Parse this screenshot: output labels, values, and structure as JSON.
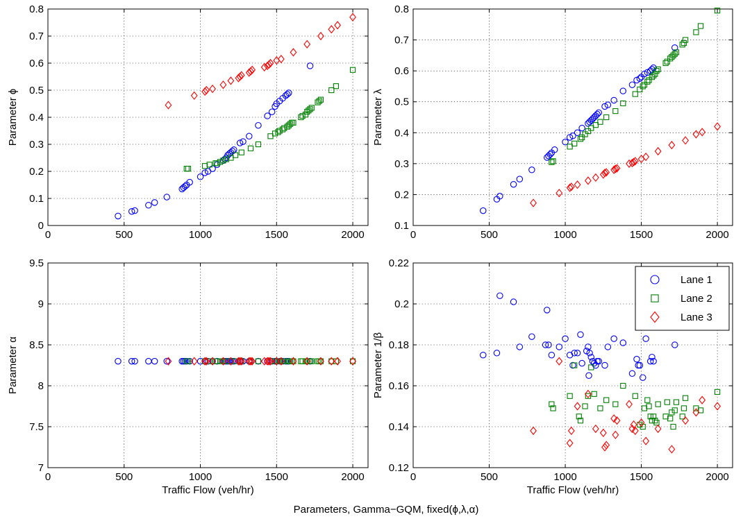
{
  "figure": {
    "caption": "Parameters, Gamma−GQM, fixed(ϕ,λ,α)",
    "colors": {
      "lane1": "#0000ff",
      "lane2": "#008000",
      "lane3": "#ff0000"
    },
    "markers": {
      "lane1": "circle",
      "lane2": "square",
      "lane3": "diamond"
    }
  },
  "chart_data": [
    {
      "type": "scatter",
      "panel": "top-left",
      "xlabel": "",
      "ylabel": "Parameter ϕ",
      "xlim": [
        0,
        2100
      ],
      "ylim": [
        0,
        0.8
      ],
      "xticks": [
        0,
        500,
        1000,
        1500,
        2000
      ],
      "yticks": [
        0,
        0.1,
        0.2,
        0.3,
        0.4,
        0.5,
        0.6,
        0.7,
        0.8
      ],
      "ytick_labels": [
        "0",
        "0.1",
        "0.2",
        "0.3",
        "0.4",
        "0.5",
        "0.6",
        "0.7",
        "0.8"
      ],
      "grid": true,
      "series": [
        {
          "name": "Lane 1",
          "color": "#0000ff",
          "marker": "circle",
          "x": [
            460,
            550,
            570,
            660,
            700,
            780,
            880,
            890,
            900,
            910,
            930,
            1000,
            1030,
            1050,
            1080,
            1110,
            1150,
            1160,
            1170,
            1180,
            1190,
            1200,
            1210,
            1220,
            1260,
            1280,
            1320,
            1380,
            1440,
            1470,
            1490,
            1500,
            1520,
            1540,
            1560,
            1570,
            1580,
            1720
          ],
          "y": [
            0.035,
            0.052,
            0.055,
            0.075,
            0.085,
            0.105,
            0.135,
            0.14,
            0.145,
            0.15,
            0.16,
            0.18,
            0.195,
            0.2,
            0.21,
            0.225,
            0.24,
            0.245,
            0.25,
            0.26,
            0.265,
            0.27,
            0.275,
            0.28,
            0.305,
            0.31,
            0.33,
            0.37,
            0.405,
            0.42,
            0.44,
            0.45,
            0.46,
            0.47,
            0.48,
            0.485,
            0.49,
            0.59
          ]
        },
        {
          "name": "Lane 2",
          "color": "#008000",
          "marker": "square",
          "x": [
            910,
            920,
            1030,
            1060,
            1100,
            1110,
            1130,
            1150,
            1170,
            1200,
            1230,
            1270,
            1330,
            1380,
            1460,
            1490,
            1510,
            1520,
            1540,
            1550,
            1570,
            1580,
            1590,
            1600,
            1610,
            1660,
            1670,
            1690,
            1700,
            1710,
            1720,
            1730,
            1770,
            1780,
            1790,
            1860,
            1890,
            2000
          ],
          "y": [
            0.21,
            0.21,
            0.22,
            0.225,
            0.23,
            0.23,
            0.235,
            0.24,
            0.245,
            0.25,
            0.26,
            0.27,
            0.285,
            0.3,
            0.33,
            0.34,
            0.345,
            0.35,
            0.355,
            0.36,
            0.365,
            0.37,
            0.375,
            0.38,
            0.38,
            0.4,
            0.405,
            0.41,
            0.42,
            0.425,
            0.43,
            0.435,
            0.455,
            0.46,
            0.465,
            0.5,
            0.515,
            0.575
          ]
        },
        {
          "name": "Lane 3",
          "color": "#ff0000",
          "marker": "diamond",
          "x": [
            790,
            960,
            1030,
            1040,
            1080,
            1150,
            1200,
            1250,
            1260,
            1270,
            1320,
            1330,
            1340,
            1420,
            1440,
            1450,
            1460,
            1500,
            1530,
            1610,
            1700,
            1790,
            1860,
            1900,
            2000
          ],
          "y": [
            0.445,
            0.48,
            0.495,
            0.5,
            0.505,
            0.52,
            0.535,
            0.545,
            0.55,
            0.555,
            0.565,
            0.57,
            0.575,
            0.585,
            0.59,
            0.595,
            0.6,
            0.61,
            0.615,
            0.64,
            0.67,
            0.7,
            0.725,
            0.74,
            0.77
          ]
        }
      ]
    },
    {
      "type": "scatter",
      "panel": "top-right",
      "xlabel": "",
      "ylabel": "Parameter λ",
      "xlim": [
        0,
        2100
      ],
      "ylim": [
        0.1,
        0.8
      ],
      "xticks": [
        0,
        500,
        1000,
        1500,
        2000
      ],
      "yticks": [
        0.1,
        0.2,
        0.3,
        0.4,
        0.5,
        0.6,
        0.7,
        0.8
      ],
      "ytick_labels": [
        "0.1",
        "0.2",
        "0.3",
        "0.4",
        "0.5",
        "0.6",
        "0.7",
        "0.8"
      ],
      "grid": true,
      "series": [
        {
          "name": "Lane 1",
          "color": "#0000ff",
          "marker": "circle",
          "x": [
            460,
            550,
            570,
            660,
            700,
            780,
            880,
            890,
            900,
            910,
            930,
            1000,
            1030,
            1050,
            1080,
            1110,
            1150,
            1160,
            1170,
            1180,
            1190,
            1200,
            1210,
            1220,
            1260,
            1280,
            1320,
            1380,
            1440,
            1470,
            1490,
            1500,
            1520,
            1540,
            1560,
            1570,
            1580,
            1720
          ],
          "y": [
            0.148,
            0.185,
            0.195,
            0.233,
            0.25,
            0.28,
            0.32,
            0.325,
            0.33,
            0.335,
            0.345,
            0.37,
            0.385,
            0.39,
            0.4,
            0.415,
            0.43,
            0.435,
            0.44,
            0.445,
            0.45,
            0.455,
            0.46,
            0.465,
            0.485,
            0.49,
            0.505,
            0.535,
            0.555,
            0.57,
            0.575,
            0.58,
            0.59,
            0.595,
            0.6,
            0.605,
            0.61,
            0.675
          ]
        },
        {
          "name": "Lane 2",
          "color": "#008000",
          "marker": "square",
          "x": [
            910,
            920,
            1030,
            1060,
            1100,
            1110,
            1130,
            1150,
            1170,
            1200,
            1230,
            1270,
            1330,
            1380,
            1460,
            1490,
            1510,
            1520,
            1540,
            1550,
            1570,
            1580,
            1590,
            1600,
            1610,
            1660,
            1670,
            1690,
            1700,
            1710,
            1720,
            1730,
            1770,
            1780,
            1790,
            1860,
            1890,
            2000
          ],
          "y": [
            0.305,
            0.308,
            0.355,
            0.365,
            0.38,
            0.385,
            0.395,
            0.405,
            0.415,
            0.425,
            0.435,
            0.45,
            0.47,
            0.495,
            0.525,
            0.54,
            0.55,
            0.555,
            0.565,
            0.57,
            0.58,
            0.585,
            0.59,
            0.6,
            0.605,
            0.625,
            0.63,
            0.64,
            0.645,
            0.65,
            0.655,
            0.66,
            0.685,
            0.69,
            0.7,
            0.725,
            0.745,
            0.795
          ]
        },
        {
          "name": "Lane 3",
          "color": "#ff0000",
          "marker": "diamond",
          "x": [
            790,
            960,
            1030,
            1040,
            1080,
            1150,
            1200,
            1250,
            1260,
            1270,
            1320,
            1330,
            1340,
            1420,
            1440,
            1450,
            1460,
            1500,
            1530,
            1610,
            1700,
            1790,
            1860,
            1900,
            2000
          ],
          "y": [
            0.173,
            0.205,
            0.222,
            0.225,
            0.232,
            0.245,
            0.255,
            0.265,
            0.27,
            0.272,
            0.28,
            0.283,
            0.285,
            0.3,
            0.302,
            0.305,
            0.308,
            0.315,
            0.322,
            0.34,
            0.36,
            0.375,
            0.395,
            0.402,
            0.42
          ]
        }
      ]
    },
    {
      "type": "scatter",
      "panel": "bottom-left",
      "xlabel": "Traffic Flow (veh/hr)",
      "ylabel": "Parameter α",
      "xlim": [
        0,
        2100
      ],
      "ylim": [
        7,
        9.5
      ],
      "xticks": [
        0,
        500,
        1000,
        1500,
        2000
      ],
      "yticks": [
        7,
        7.5,
        8,
        8.5,
        9,
        9.5
      ],
      "ytick_labels": [
        "7",
        "7.5",
        "8",
        "8.5",
        "9",
        "9.5"
      ],
      "grid": true,
      "series": [
        {
          "name": "Lane 1",
          "color": "#0000ff",
          "marker": "circle",
          "x": [
            460,
            550,
            570,
            660,
            700,
            780,
            880,
            890,
            900,
            910,
            930,
            1000,
            1030,
            1050,
            1080,
            1110,
            1150,
            1160,
            1170,
            1180,
            1190,
            1200,
            1210,
            1220,
            1260,
            1280,
            1320,
            1380,
            1440,
            1470,
            1490,
            1500,
            1520,
            1540,
            1560,
            1570,
            1580,
            1720
          ],
          "y": [
            8.3,
            8.3,
            8.3,
            8.3,
            8.3,
            8.3,
            8.3,
            8.3,
            8.3,
            8.3,
            8.3,
            8.3,
            8.3,
            8.3,
            8.3,
            8.3,
            8.3,
            8.3,
            8.3,
            8.3,
            8.3,
            8.3,
            8.3,
            8.3,
            8.3,
            8.3,
            8.3,
            8.3,
            8.3,
            8.3,
            8.3,
            8.3,
            8.3,
            8.3,
            8.3,
            8.3,
            8.3,
            8.3
          ]
        },
        {
          "name": "Lane 2",
          "color": "#008000",
          "marker": "square",
          "x": [
            910,
            920,
            1030,
            1060,
            1100,
            1110,
            1130,
            1150,
            1170,
            1200,
            1230,
            1270,
            1330,
            1380,
            1460,
            1490,
            1510,
            1520,
            1540,
            1550,
            1570,
            1580,
            1590,
            1600,
            1610,
            1660,
            1670,
            1690,
            1700,
            1710,
            1720,
            1730,
            1770,
            1780,
            1790,
            1860,
            1890,
            2000
          ],
          "y": [
            8.3,
            8.3,
            8.3,
            8.3,
            8.3,
            8.3,
            8.3,
            8.3,
            8.3,
            8.3,
            8.3,
            8.3,
            8.3,
            8.3,
            8.3,
            8.3,
            8.3,
            8.3,
            8.3,
            8.3,
            8.3,
            8.3,
            8.3,
            8.3,
            8.3,
            8.3,
            8.3,
            8.3,
            8.3,
            8.3,
            8.3,
            8.3,
            8.3,
            8.3,
            8.3,
            8.3,
            8.3,
            8.3
          ]
        },
        {
          "name": "Lane 3",
          "color": "#ff0000",
          "marker": "diamond",
          "x": [
            790,
            960,
            1030,
            1040,
            1080,
            1150,
            1200,
            1250,
            1260,
            1270,
            1320,
            1330,
            1340,
            1420,
            1440,
            1450,
            1460,
            1500,
            1530,
            1610,
            1700,
            1790,
            1860,
            1900,
            2000
          ],
          "y": [
            8.3,
            8.3,
            8.3,
            8.3,
            8.3,
            8.3,
            8.3,
            8.3,
            8.3,
            8.3,
            8.3,
            8.3,
            8.3,
            8.3,
            8.3,
            8.3,
            8.3,
            8.3,
            8.3,
            8.3,
            8.3,
            8.3,
            8.3,
            8.3,
            8.3
          ]
        }
      ]
    },
    {
      "type": "scatter",
      "panel": "bottom-right",
      "xlabel": "Traffic Flow (veh/hr)",
      "ylabel": "Parameter 1/β",
      "xlim": [
        0,
        2100
      ],
      "ylim": [
        0.12,
        0.22
      ],
      "xticks": [
        0,
        500,
        1000,
        1500,
        2000
      ],
      "yticks": [
        0.12,
        0.14,
        0.16,
        0.18,
        0.2,
        0.22
      ],
      "ytick_labels": [
        "0.12",
        "0.14",
        "0.16",
        "0.18",
        "0.2",
        "0.22"
      ],
      "grid": true,
      "legend": {
        "position": "top-right",
        "entries": [
          "Lane 1",
          "Lane 2",
          "Lane 3"
        ]
      },
      "series": [
        {
          "name": "Lane 1",
          "color": "#0000ff",
          "marker": "circle",
          "x": [
            460,
            550,
            570,
            660,
            700,
            780,
            870,
            880,
            890,
            910,
            960,
            1000,
            1030,
            1050,
            1060,
            1080,
            1100,
            1110,
            1140,
            1150,
            1155,
            1160,
            1170,
            1180,
            1190,
            1200,
            1210,
            1220,
            1260,
            1280,
            1320,
            1380,
            1440,
            1470,
            1480,
            1490,
            1510,
            1530,
            1560,
            1570,
            1580,
            1720
          ],
          "y": [
            0.175,
            0.176,
            0.204,
            0.201,
            0.179,
            0.184,
            0.18,
            0.197,
            0.18,
            0.175,
            0.179,
            0.183,
            0.175,
            0.17,
            0.176,
            0.176,
            0.185,
            0.171,
            0.177,
            0.179,
            0.165,
            0.176,
            0.174,
            0.172,
            0.171,
            0.17,
            0.172,
            0.172,
            0.17,
            0.179,
            0.183,
            0.181,
            0.166,
            0.173,
            0.17,
            0.17,
            0.164,
            0.183,
            0.172,
            0.174,
            0.172,
            0.18
          ]
        },
        {
          "name": "Lane 2",
          "color": "#008000",
          "marker": "square",
          "x": [
            910,
            920,
            1030,
            1060,
            1090,
            1100,
            1130,
            1150,
            1170,
            1190,
            1230,
            1270,
            1330,
            1380,
            1460,
            1490,
            1510,
            1520,
            1540,
            1550,
            1560,
            1570,
            1580,
            1590,
            1600,
            1610,
            1660,
            1670,
            1690,
            1700,
            1710,
            1720,
            1730,
            1770,
            1780,
            1790,
            1860,
            1890,
            2000
          ],
          "y": [
            0.151,
            0.149,
            0.155,
            0.17,
            0.145,
            0.143,
            0.15,
            0.155,
            0.169,
            0.156,
            0.149,
            0.153,
            0.151,
            0.16,
            0.155,
            0.141,
            0.14,
            0.149,
            0.153,
            0.15,
            0.145,
            0.143,
            0.145,
            0.143,
            0.142,
            0.151,
            0.145,
            0.152,
            0.144,
            0.147,
            0.14,
            0.148,
            0.152,
            0.145,
            0.149,
            0.154,
            0.149,
            0.148,
            0.157
          ]
        },
        {
          "name": "Lane 3",
          "color": "#ff0000",
          "marker": "diamond",
          "x": [
            790,
            960,
            1030,
            1040,
            1080,
            1150,
            1200,
            1250,
            1260,
            1270,
            1320,
            1330,
            1340,
            1420,
            1440,
            1450,
            1460,
            1500,
            1530,
            1610,
            1700,
            1790,
            1860,
            1900,
            2000
          ],
          "y": [
            0.138,
            0.172,
            0.132,
            0.138,
            0.15,
            0.156,
            0.139,
            0.137,
            0.13,
            0.131,
            0.144,
            0.136,
            0.143,
            0.151,
            0.139,
            0.141,
            0.138,
            0.142,
            0.133,
            0.139,
            0.129,
            0.143,
            0.147,
            0.153,
            0.15
          ]
        }
      ]
    }
  ]
}
